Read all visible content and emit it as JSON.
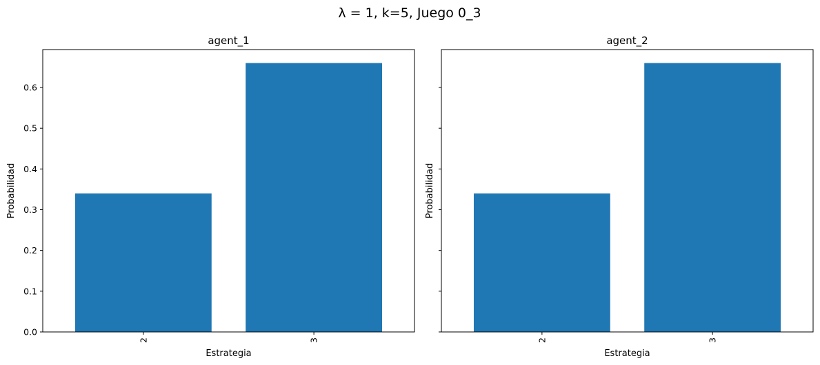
{
  "suptitle": "λ = 1, k=5, Juego 0_3",
  "colors": {
    "bar": "#1f77b4"
  },
  "chart_data": [
    {
      "type": "bar",
      "title": "agent_1",
      "xlabel": "Estrategia",
      "ylabel": "Probabilidad",
      "categories": [
        "2",
        "3"
      ],
      "values": [
        0.34,
        0.66
      ],
      "ylim": [
        0,
        0.693
      ],
      "yticks": [
        "0.0",
        "0.1",
        "0.2",
        "0.3",
        "0.4",
        "0.5",
        "0.6"
      ],
      "xtick_rotation": "vertical",
      "grid": false,
      "legend": "none"
    },
    {
      "type": "bar",
      "title": "agent_2",
      "xlabel": "Estrategia",
      "ylabel": "Probabilidad",
      "categories": [
        "2",
        "3"
      ],
      "values": [
        0.34,
        0.66
      ],
      "ylim": [
        0,
        0.693
      ],
      "yticks": [
        "0.0",
        "0.1",
        "0.2",
        "0.3",
        "0.4",
        "0.5",
        "0.6"
      ],
      "xtick_rotation": "vertical",
      "grid": false,
      "legend": "none",
      "shared_y_labels_hidden": true
    }
  ]
}
